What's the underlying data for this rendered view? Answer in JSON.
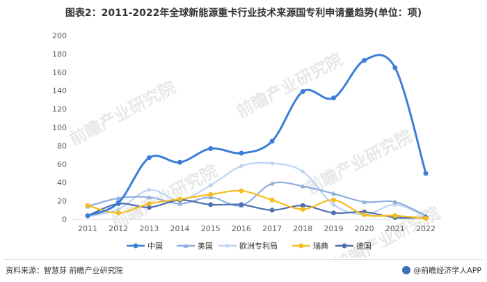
{
  "header": {
    "title": "图表2：2011-2022年全球新能源重卡行业技术来源国专利申请量趋势(单位：项)"
  },
  "footer": {
    "source": "资料来源：智慧芽 前瞻产业研究院",
    "brand": "@前瞻经济学人APP"
  },
  "watermark": {
    "text": "前瞻产业研究院"
  },
  "chart_data": {
    "type": "line",
    "title": "图表2：2011-2022年全球新能源重卡行业技术来源国专利申请量趋势(单位：项)",
    "xlabel": "",
    "ylabel": "",
    "categories": [
      "2011",
      "2012",
      "2013",
      "2014",
      "2015",
      "2016",
      "2017",
      "2018",
      "2019",
      "2020",
      "2021",
      "2022"
    ],
    "y_ticks": [
      "0",
      "20",
      "40",
      "60",
      "80",
      "100",
      "120",
      "140",
      "160",
      "180",
      "200"
    ],
    "ylim": [
      0,
      200
    ],
    "grid": false,
    "legend_position": "bottom",
    "smooth": true,
    "series": [
      {
        "name": "中国",
        "color": "#3b7dd8",
        "marker": "circle",
        "values": [
          4,
          18,
          67,
          62,
          77,
          72,
          85,
          139,
          132,
          173,
          165,
          50
        ]
      },
      {
        "name": "美国",
        "color": "#8eaee0",
        "marker": "triangle",
        "values": [
          14,
          23,
          24,
          17,
          24,
          15,
          39,
          36,
          28,
          19,
          19,
          4
        ]
      },
      {
        "name": "欧洲专利局",
        "color": "#bcd3f2",
        "marker": "diamond",
        "values": [
          3,
          11,
          32,
          21,
          37,
          58,
          61,
          52,
          16,
          5,
          16,
          3
        ]
      },
      {
        "name": "瑞典",
        "color": "#f5bd1f",
        "marker": "circle",
        "values": [
          15,
          7,
          17,
          22,
          27,
          31,
          21,
          11,
          21,
          5,
          4,
          1
        ]
      },
      {
        "name": "德国",
        "color": "#4f6fae",
        "marker": "circle",
        "values": [
          4,
          17,
          13,
          21,
          16,
          16,
          10,
          15,
          7,
          8,
          2,
          2
        ]
      }
    ]
  }
}
